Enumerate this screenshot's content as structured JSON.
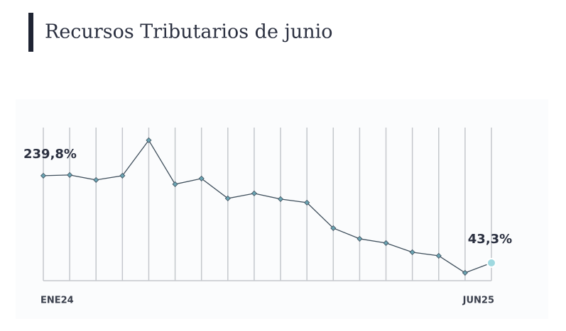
{
  "chart_data": {
    "type": "line",
    "title": "Recursos Tributarios de junio",
    "categories": [
      "ENE24",
      null,
      null,
      null,
      null,
      null,
      null,
      null,
      null,
      null,
      null,
      null,
      null,
      null,
      null,
      null,
      null,
      "JUN25"
    ],
    "series": [
      {
        "color": "#3f4f5c",
        "values": [
          239.8,
          241.4,
          230.2,
          239.8,
          319.7,
          220.6,
          233.4,
          188.7,
          199.9,
          187.1,
          179.1,
          121.6,
          97.6,
          88.0,
          67.3,
          59.3,
          20.9,
          43.3
        ],
        "value_labels": [
          "239,8%",
          null,
          null,
          null,
          null,
          null,
          null,
          null,
          null,
          null,
          null,
          null,
          null,
          null,
          null,
          null,
          null,
          "43,3%"
        ]
      }
    ],
    "ylim": [
      0,
      400
    ]
  }
}
